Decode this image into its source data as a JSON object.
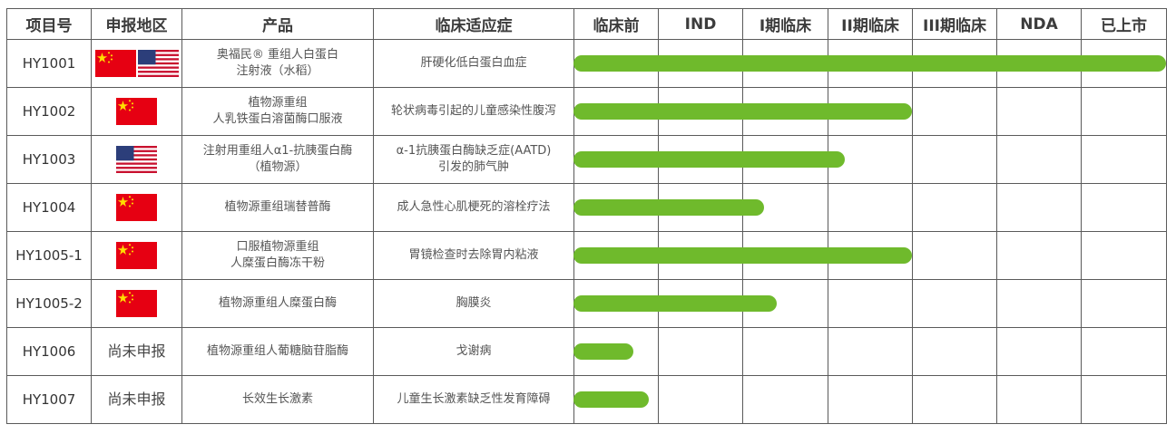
{
  "headers": [
    "项目号",
    "申报地区",
    "产品",
    "临床适应症",
    "临床前",
    "IND",
    "I期临床",
    "II期临床",
    "III期临床",
    "NDA",
    "已上市"
  ],
  "bar_color": "#6fba2c",
  "rows": [
    {
      "id": "HY1001",
      "regions": [
        "china-flag",
        "usa-flag"
      ],
      "region_text": "",
      "product": [
        "奥福民® 重组人白蛋白",
        "注射液（水稻）"
      ],
      "indication": [
        "肝硬化低白蛋白血症"
      ],
      "progress_stages": 7.0
    },
    {
      "id": "HY1002",
      "regions": [
        "china-flag"
      ],
      "region_text": "",
      "product": [
        "植物源重组",
        "人乳铁蛋白溶菌酶口服液"
      ],
      "indication": [
        "轮状病毒引起的儿童感染性腹泻"
      ],
      "progress_stages": 4.0
    },
    {
      "id": "HY1003",
      "regions": [
        "usa-flag"
      ],
      "region_text": "",
      "product": [
        "注射用重组人α1-抗胰蛋白酶",
        "（植物源）"
      ],
      "indication": [
        "α-1抗胰蛋白酶缺乏症(AATD)",
        "引发的肺气肿"
      ],
      "progress_stages": 3.2
    },
    {
      "id": "HY1004",
      "regions": [
        "china-flag"
      ],
      "region_text": "",
      "product": [
        "植物源重组瑞替普酶"
      ],
      "indication": [
        "成人急性心肌梗死的溶栓疗法"
      ],
      "progress_stages": 2.25
    },
    {
      "id": "HY1005-1",
      "regions": [
        "china-flag"
      ],
      "region_text": "",
      "product": [
        "口服植物源重组",
        "人糜蛋白酶冻干粉"
      ],
      "indication": [
        "胃镜检查时去除胃内粘液"
      ],
      "progress_stages": 4.0
    },
    {
      "id": "HY1005-2",
      "regions": [
        "china-flag"
      ],
      "region_text": "",
      "product": [
        "植物源重组人糜蛋白酶"
      ],
      "indication": [
        "胸膜炎"
      ],
      "progress_stages": 2.4
    },
    {
      "id": "HY1006",
      "regions": [],
      "region_text": "尚未申报",
      "product": [
        "植物源重组人葡糖脑苷脂酶"
      ],
      "indication": [
        "戈谢病"
      ],
      "progress_stages": 0.71
    },
    {
      "id": "HY1007",
      "regions": [],
      "region_text": "尚未申报",
      "product": [
        "长效生长激素"
      ],
      "indication": [
        "儿童生长激素缺乏性发育障碍"
      ],
      "progress_stages": 0.89
    }
  ]
}
